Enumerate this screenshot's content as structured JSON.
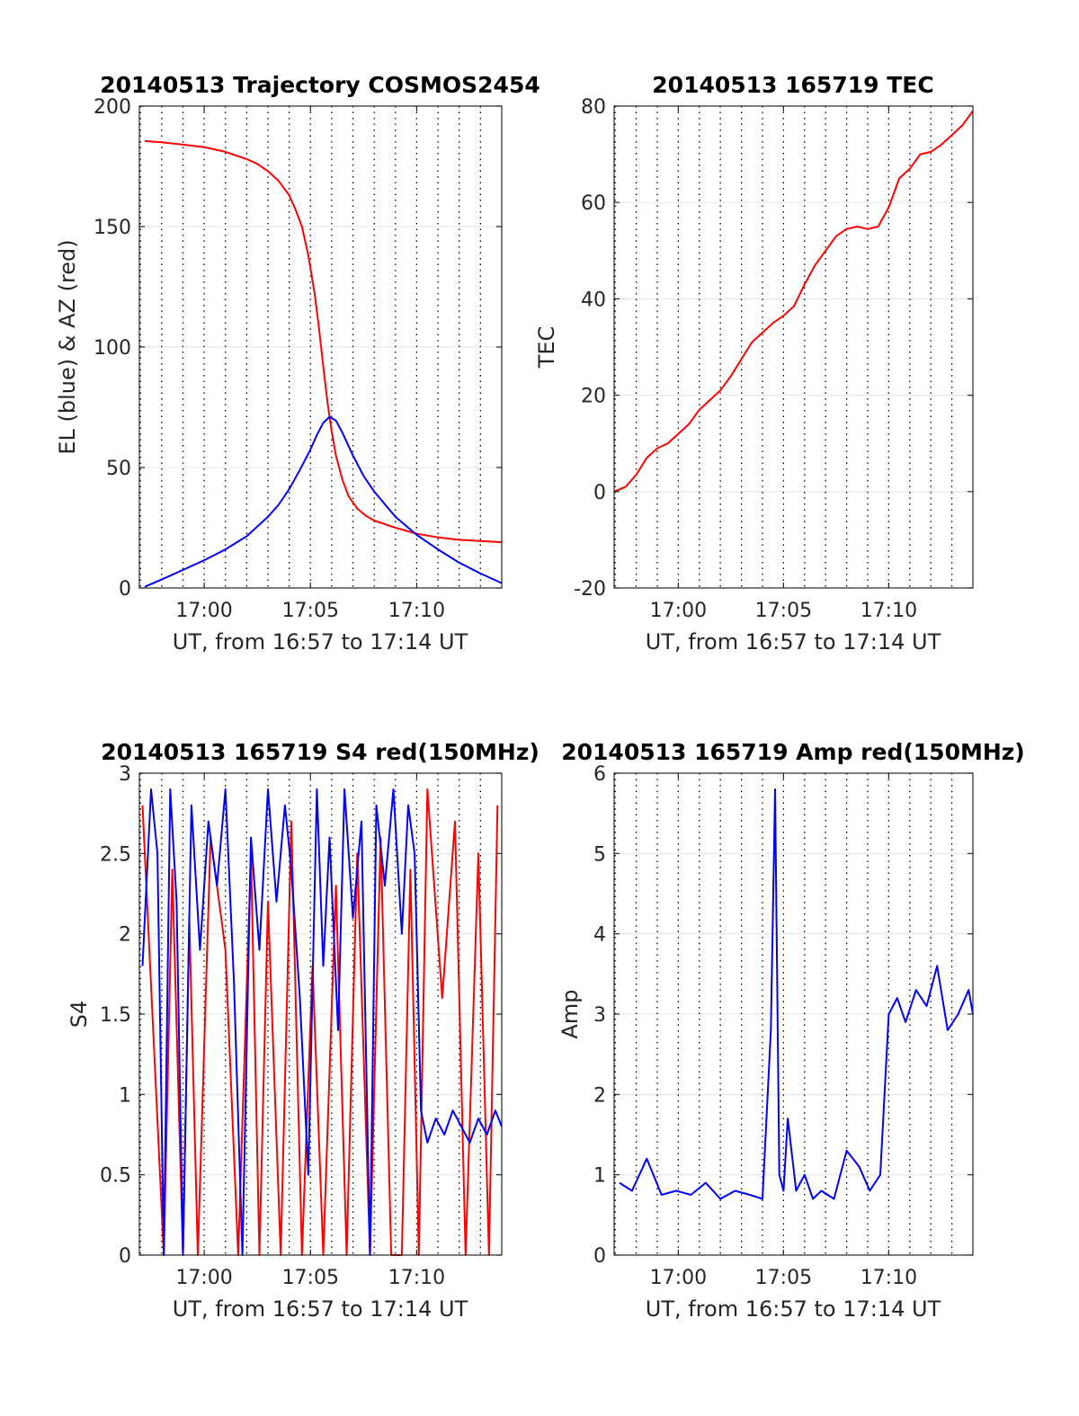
{
  "chart_data": [
    {
      "id": "traj",
      "type": "line",
      "title": "20140513 Trajectory COSMOS2454",
      "xlabel": "UT, from 16:57 to 17:14 UT",
      "ylabel": "EL (blue) & AZ (red)",
      "xlim_minutes": [
        16.95,
        34.0
      ],
      "xticks": [
        {
          "value": 20,
          "label": "17:00"
        },
        {
          "value": 25,
          "label": "17:05"
        },
        {
          "value": 30,
          "label": "17:10"
        }
      ],
      "ylim": [
        0,
        200
      ],
      "yticks": [
        {
          "value": 0,
          "label": "0"
        },
        {
          "value": 50,
          "label": "50"
        },
        {
          "value": 100,
          "label": "100"
        },
        {
          "value": 150,
          "label": "150"
        },
        {
          "value": 200,
          "label": "200"
        }
      ],
      "series": [
        {
          "name": "AZ",
          "color": "#ff0000",
          "x": [
            17.2,
            18,
            19,
            20,
            21,
            22,
            22.5,
            23,
            23.5,
            24,
            24.3,
            24.6,
            24.9,
            25.2,
            25.4,
            25.6,
            25.8,
            26.0,
            26.2,
            26.5,
            26.8,
            27.2,
            27.6,
            28,
            29,
            30,
            31,
            32,
            33,
            34
          ],
          "y": [
            185.5,
            185,
            184,
            183,
            181,
            178,
            176,
            173,
            169,
            163,
            157,
            150,
            138,
            122,
            108,
            92,
            77,
            65,
            55,
            45,
            38,
            33,
            30,
            28,
            25,
            22.5,
            21,
            20,
            19.5,
            19
          ]
        },
        {
          "name": "EL",
          "color": "#0000ff",
          "x": [
            17.2,
            18,
            19,
            20,
            21,
            22,
            23,
            23.5,
            24,
            24.5,
            25,
            25.3,
            25.6,
            25.9,
            26.2,
            26.5,
            27,
            27.5,
            28,
            29,
            30,
            31,
            32,
            33,
            34
          ],
          "y": [
            0.5,
            3.5,
            7.5,
            11.5,
            16,
            21.5,
            29.5,
            34.5,
            41,
            49,
            57.5,
            63.5,
            68.5,
            71,
            69.5,
            64.5,
            55,
            46.5,
            40,
            29.5,
            22,
            16,
            10.5,
            6,
            2
          ]
        }
      ]
    },
    {
      "id": "tec",
      "type": "line",
      "title": "20140513 165719 TEC",
      "xlabel": "UT, from 16:57 to 17:14 UT",
      "ylabel": "TEC",
      "xlim_minutes": [
        16.95,
        34.0
      ],
      "xticks": [
        {
          "value": 20,
          "label": "17:00"
        },
        {
          "value": 25,
          "label": "17:05"
        },
        {
          "value": 30,
          "label": "17:10"
        }
      ],
      "ylim": [
        -20,
        80
      ],
      "yticks": [
        {
          "value": -20,
          "label": "-20"
        },
        {
          "value": 0,
          "label": "0"
        },
        {
          "value": 20,
          "label": "20"
        },
        {
          "value": 40,
          "label": "40"
        },
        {
          "value": 60,
          "label": "60"
        },
        {
          "value": 80,
          "label": "80"
        }
      ],
      "series": [
        {
          "name": "TEC",
          "color": "#ff0000",
          "x": [
            16.95,
            17.5,
            18,
            18.5,
            19,
            19.5,
            20,
            20.5,
            21,
            21.5,
            22,
            22.5,
            23,
            23.5,
            24,
            24.5,
            25,
            25.5,
            26,
            26.5,
            27,
            27.5,
            28,
            28.5,
            29,
            29.5,
            30,
            30.5,
            31,
            31.5,
            32,
            32.5,
            33,
            33.5,
            34
          ],
          "y": [
            0,
            1,
            3.5,
            7,
            9,
            10,
            12,
            14,
            17,
            19,
            21,
            24,
            27.5,
            31,
            33,
            35,
            36.5,
            38.5,
            43,
            47,
            50,
            53,
            54.5,
            55,
            54.5,
            55,
            59,
            65,
            67,
            70,
            70.5,
            72,
            74,
            76,
            79
          ]
        }
      ]
    },
    {
      "id": "s4",
      "type": "line",
      "title": "20140513 165719 S4 red(150MHz)",
      "xlabel": "UT, from 16:57 to 17:14 UT",
      "ylabel": "S4",
      "xlim_minutes": [
        16.95,
        34.0
      ],
      "xticks": [
        {
          "value": 20,
          "label": "17:00"
        },
        {
          "value": 25,
          "label": "17:05"
        },
        {
          "value": 30,
          "label": "17:10"
        }
      ],
      "ylim": [
        0,
        3
      ],
      "yticks": [
        {
          "value": 0,
          "label": "0"
        },
        {
          "value": 0.5,
          "label": "0.5"
        },
        {
          "value": 1,
          "label": "1"
        },
        {
          "value": 1.5,
          "label": "1.5"
        },
        {
          "value": 2,
          "label": "2"
        },
        {
          "value": 2.5,
          "label": "2.5"
        },
        {
          "value": 3,
          "label": "3"
        }
      ],
      "series": [
        {
          "name": "S4 red",
          "color": "#ff0000",
          "x": [
            17.1,
            18.1,
            18.5,
            19.0,
            19.3,
            19.7,
            20.3,
            21.0,
            21.6,
            22.2,
            22.6,
            23.0,
            23.6,
            24.1,
            24.6,
            25.1,
            25.6,
            26.2,
            26.7,
            27.2,
            27.8,
            28.3,
            28.8,
            29.3,
            29.7,
            30.1,
            30.5,
            31.2,
            31.8,
            32.3,
            32.9,
            33.4,
            33.8
          ],
          "y": [
            2.8,
            0,
            2.4,
            0,
            2.1,
            0,
            2.6,
            1.9,
            0,
            2.5,
            0,
            2.2,
            0,
            2.7,
            0,
            1.8,
            0,
            2.3,
            0,
            2.5,
            0,
            2.6,
            0,
            0,
            2.4,
            0,
            2.9,
            1.6,
            2.7,
            0,
            2.5,
            0,
            2.8
          ]
        },
        {
          "name": "S4 blue",
          "color": "#0000ff",
          "x": [
            17.1,
            17.5,
            17.8,
            18.1,
            18.4,
            18.7,
            19.0,
            19.4,
            19.8,
            20.2,
            20.6,
            21.0,
            21.4,
            21.8,
            22.2,
            22.6,
            23.0,
            23.4,
            23.8,
            24.1,
            24.5,
            24.9,
            25.3,
            25.6,
            25.9,
            26.3,
            26.6,
            27.0,
            27.4,
            27.8,
            28.1,
            28.5,
            28.9,
            29.3,
            29.6,
            29.9,
            30.2,
            30.5,
            30.9,
            31.3,
            31.7,
            32.1,
            32.5,
            32.9,
            33.3,
            33.7,
            34.0
          ],
          "y": [
            1.8,
            2.9,
            2.5,
            0,
            2.9,
            2.2,
            0,
            2.8,
            1.9,
            2.7,
            2.3,
            2.9,
            1.7,
            0,
            2.6,
            1.9,
            2.9,
            2.2,
            2.8,
            2.4,
            1.6,
            0.5,
            2.9,
            1.8,
            2.6,
            1.4,
            2.9,
            2.1,
            2.7,
            0,
            2.8,
            2.3,
            2.9,
            2.0,
            2.8,
            2.5,
            0.9,
            0.7,
            0.85,
            0.75,
            0.9,
            0.8,
            0.7,
            0.85,
            0.75,
            0.9,
            0.8
          ]
        }
      ]
    },
    {
      "id": "amp",
      "type": "line",
      "title": "20140513 165719 Amp red(150MHz)",
      "xlabel": "UT, from 16:57 to 17:14 UT",
      "ylabel": "Amp",
      "xlim_minutes": [
        16.95,
        34.0
      ],
      "xticks": [
        {
          "value": 20,
          "label": "17:00"
        },
        {
          "value": 25,
          "label": "17:05"
        },
        {
          "value": 30,
          "label": "17:10"
        }
      ],
      "ylim": [
        0,
        6
      ],
      "yticks": [
        {
          "value": 0,
          "label": "0"
        },
        {
          "value": 1,
          "label": "1"
        },
        {
          "value": 2,
          "label": "2"
        },
        {
          "value": 3,
          "label": "3"
        },
        {
          "value": 4,
          "label": "4"
        },
        {
          "value": 5,
          "label": "5"
        },
        {
          "value": 6,
          "label": "6"
        }
      ],
      "series": [
        {
          "name": "Amp",
          "color": "#0000ff",
          "x": [
            17.2,
            17.8,
            18.5,
            19.2,
            19.9,
            20.6,
            21.3,
            22.0,
            22.7,
            23.4,
            24.0,
            24.4,
            24.6,
            24.8,
            25.0,
            25.2,
            25.6,
            26.0,
            26.4,
            26.8,
            27.4,
            28.0,
            28.6,
            29.1,
            29.6,
            30.0,
            30.4,
            30.8,
            31.3,
            31.8,
            32.3,
            32.8,
            33.3,
            33.8,
            34.0
          ],
          "y": [
            0.9,
            0.8,
            1.2,
            0.75,
            0.8,
            0.75,
            0.9,
            0.7,
            0.8,
            0.75,
            0.7,
            2.8,
            5.8,
            1.0,
            0.8,
            1.7,
            0.8,
            1.0,
            0.7,
            0.8,
            0.7,
            1.3,
            1.1,
            0.8,
            1.0,
            3.0,
            3.2,
            2.9,
            3.3,
            3.1,
            3.6,
            2.8,
            3.0,
            3.3,
            3.0
          ]
        }
      ]
    }
  ]
}
